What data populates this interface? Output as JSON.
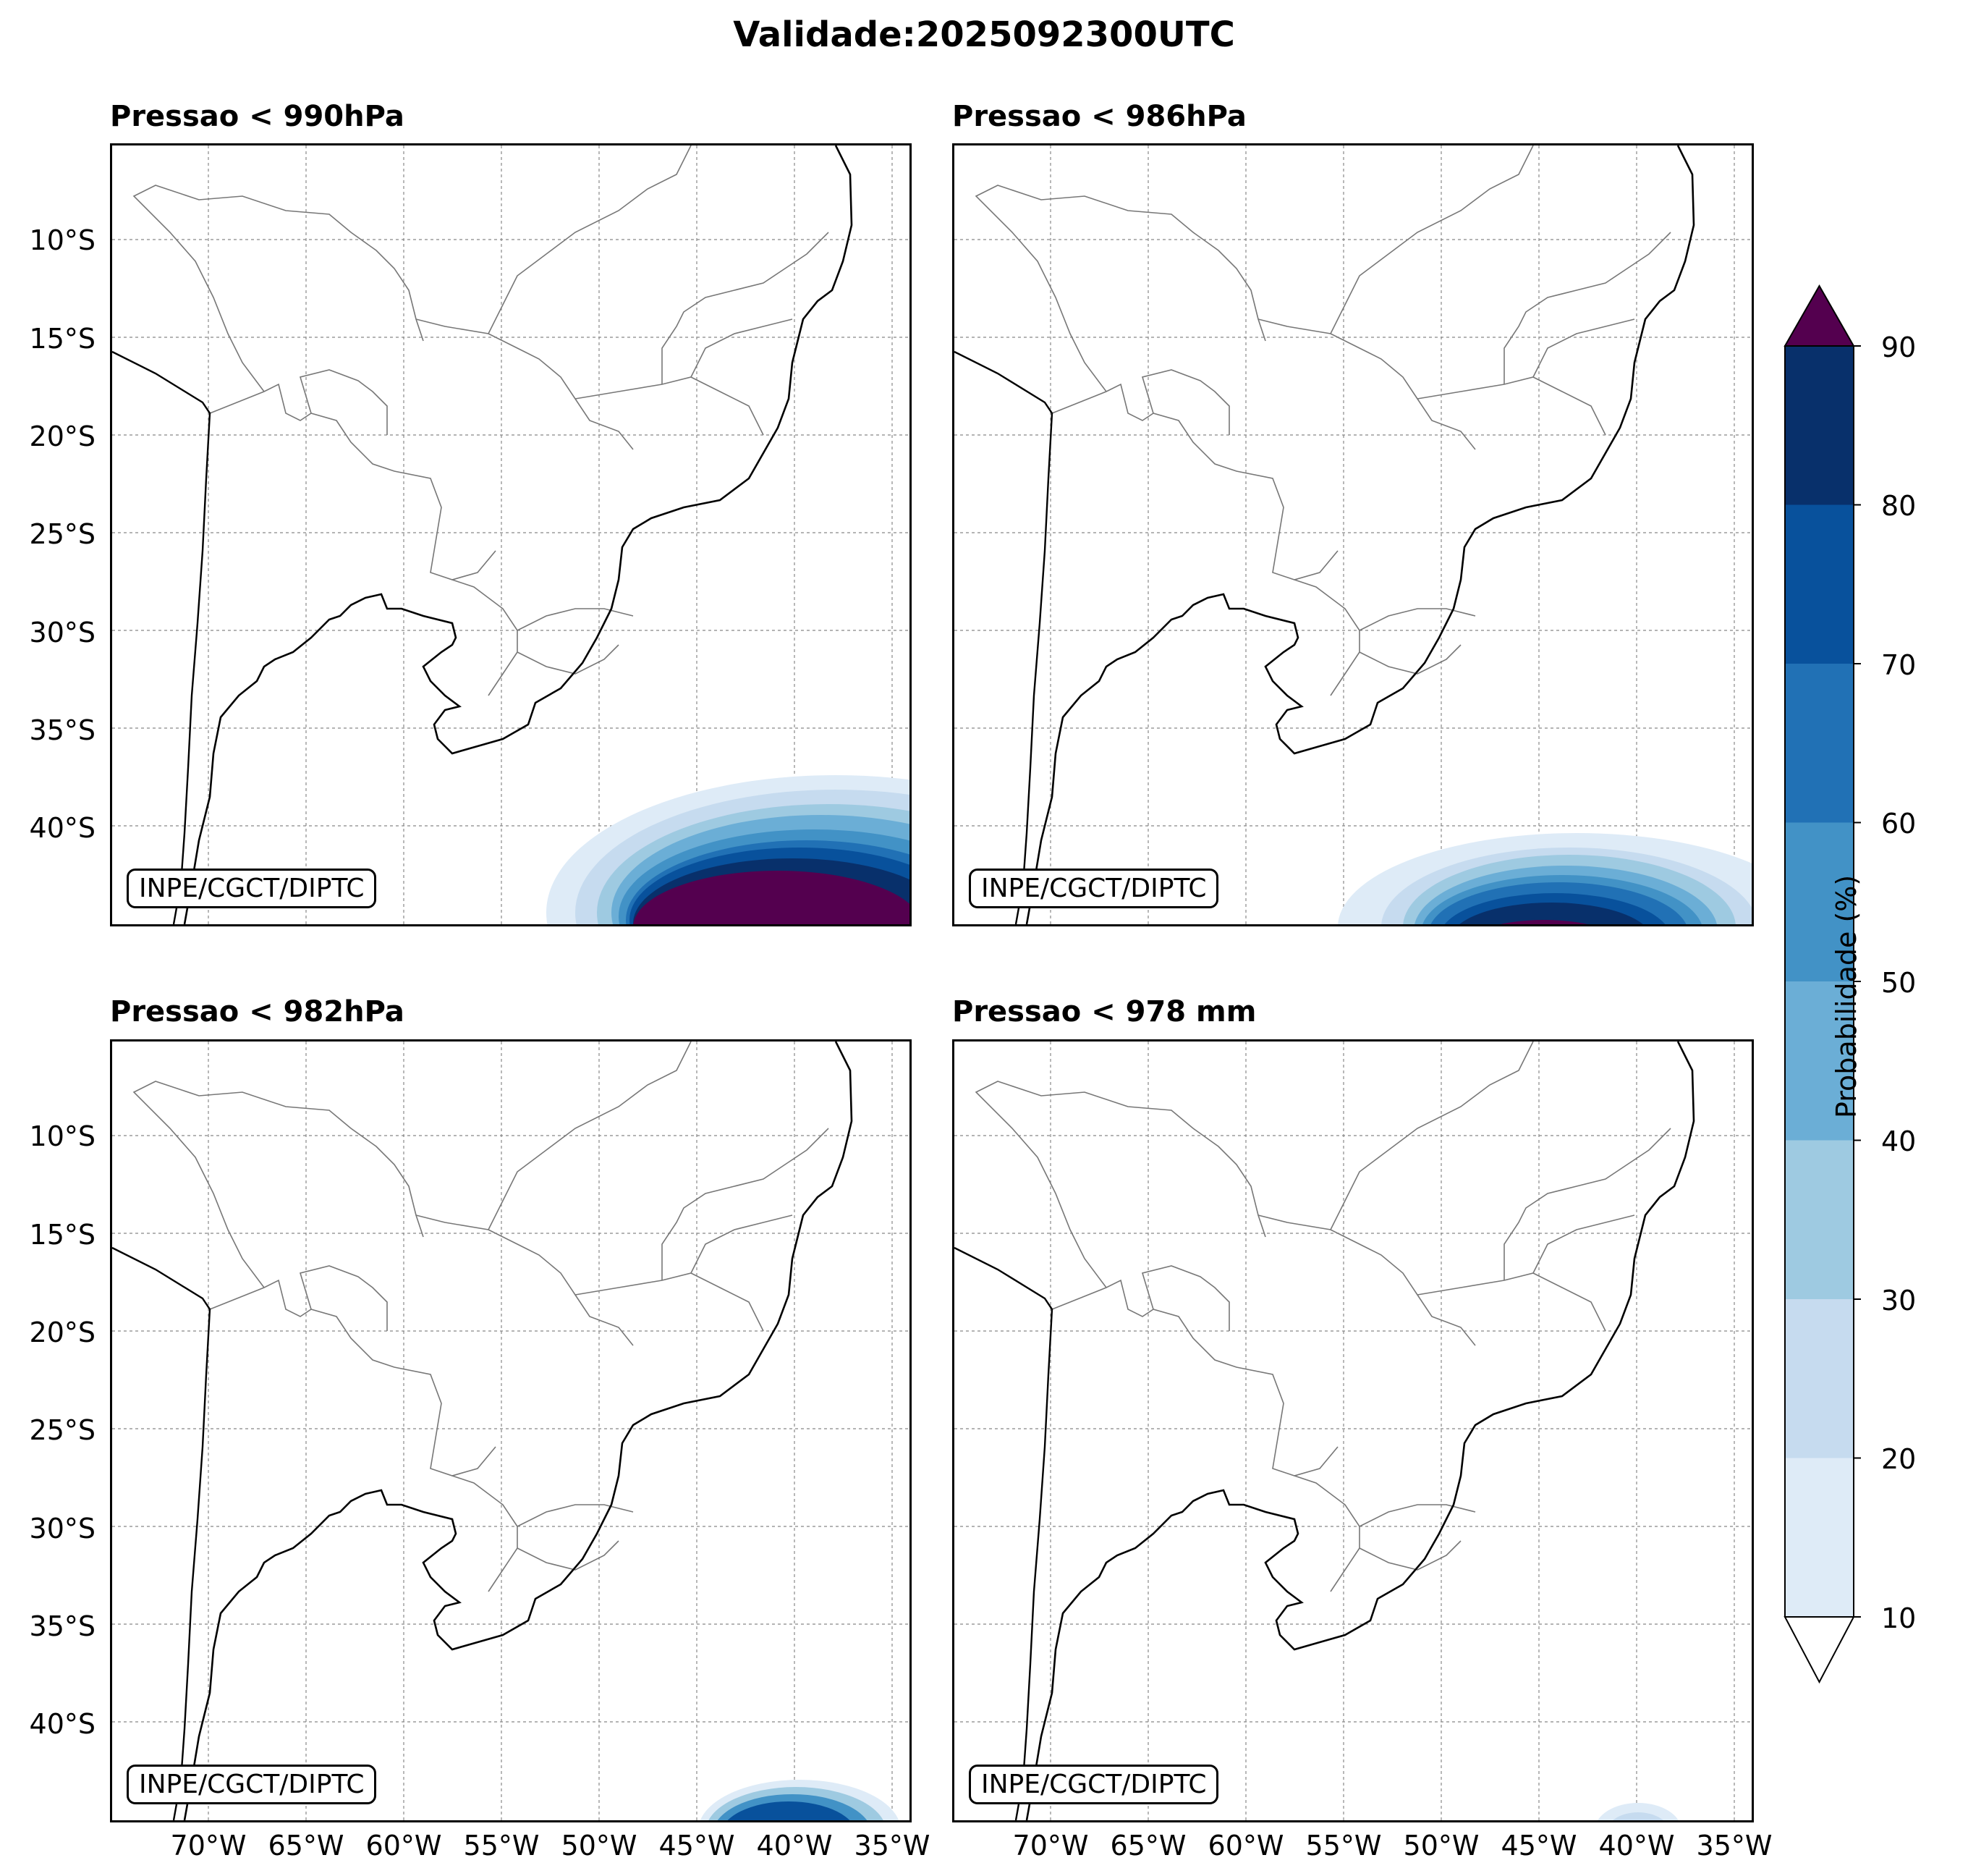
{
  "title": "Validade:2025092300UTC",
  "panels": [
    {
      "title": "Pressao < 990hPa",
      "credit": "INPE/CGCT/DIPTC",
      "intensity": "high"
    },
    {
      "title": "Pressao < 986hPa",
      "credit": "INPE/CGCT/DIPTC",
      "intensity": "medium"
    },
    {
      "title": "Pressao < 982hPa",
      "credit": "INPE/CGCT/DIPTC",
      "intensity": "low"
    },
    {
      "title": "Pressao < 978 mm",
      "credit": "INPE/CGCT/DIPTC",
      "intensity": "minimal"
    }
  ],
  "lat_labels": [
    "10°S",
    "15°S",
    "20°S",
    "25°S",
    "30°S",
    "35°S",
    "40°S"
  ],
  "lon_labels": [
    "70°W",
    "65°W",
    "60°W",
    "55°W",
    "50°W",
    "45°W",
    "40°W",
    "35°W"
  ],
  "colorbar": {
    "label": "Probabilidade (%)",
    "ticks": [
      "10",
      "20",
      "30",
      "40",
      "50",
      "60",
      "70",
      "80",
      "90"
    ],
    "colors": [
      "#deebf7",
      "#c6dbef",
      "#9ecae1",
      "#6baed6",
      "#4292c6",
      "#2171b5",
      "#08519c",
      "#08306b"
    ],
    "over_color": "#54004f"
  }
}
